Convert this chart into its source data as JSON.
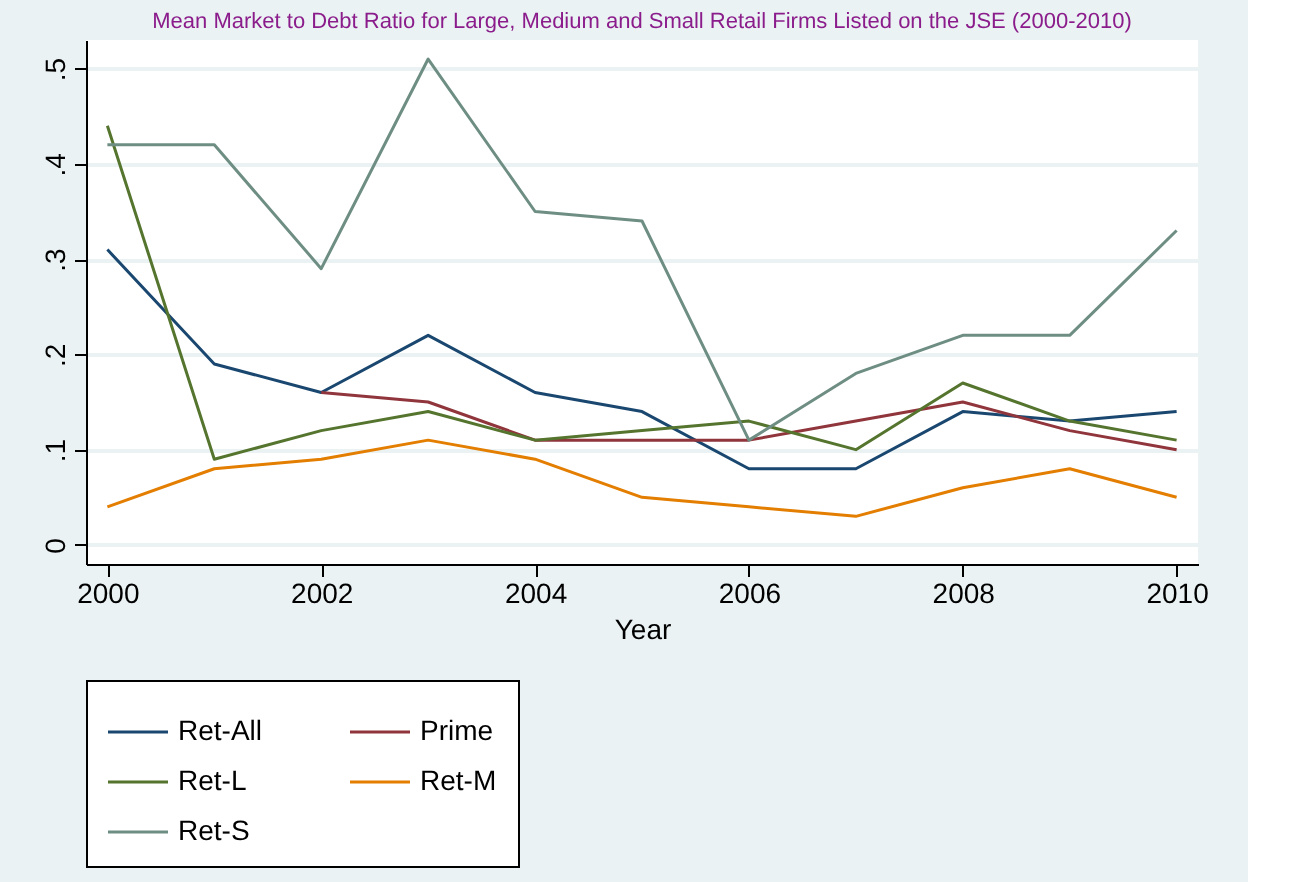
{
  "chart_data": {
    "type": "line",
    "title": "Mean Market to Debt Ratio for Large, Medium and Small Retail Firms Listed on the JSE (2000-2010)",
    "xlabel": "Year",
    "x": [
      2000,
      2001,
      2002,
      2003,
      2004,
      2005,
      2006,
      2007,
      2008,
      2009,
      2010
    ],
    "series": [
      {
        "name": "Ret-All",
        "color": "#1a476f",
        "values": [
          0.31,
          0.19,
          0.16,
          0.22,
          0.16,
          0.14,
          0.08,
          0.08,
          0.14,
          0.13,
          0.14
        ]
      },
      {
        "name": "Prime",
        "color": "#90353b",
        "values": [
          null,
          null,
          0.16,
          0.15,
          0.11,
          0.11,
          0.11,
          0.13,
          0.15,
          0.12,
          0.1
        ]
      },
      {
        "name": "Ret-L",
        "color": "#55752f",
        "values": [
          0.44,
          0.09,
          0.12,
          0.14,
          0.11,
          0.12,
          0.13,
          0.1,
          0.17,
          0.13,
          0.11
        ]
      },
      {
        "name": "Ret-M",
        "color": "#e37e00",
        "values": [
          0.04,
          0.08,
          0.09,
          0.11,
          0.09,
          0.05,
          0.04,
          0.03,
          0.06,
          0.08,
          0.05
        ]
      },
      {
        "name": "Ret-S",
        "color": "#6e8e84",
        "values": [
          0.42,
          0.42,
          0.29,
          0.51,
          0.35,
          0.34,
          0.11,
          0.18,
          0.22,
          0.22,
          0.33
        ]
      }
    ],
    "xlim": [
      1999.8,
      2010.2
    ],
    "xticks": [
      2000,
      2002,
      2004,
      2006,
      2008,
      2010
    ],
    "ylim": [
      -0.02,
      0.53
    ],
    "yticks": [
      {
        "value": 0,
        "label": "0"
      },
      {
        "value": 0.1,
        "label": ".1"
      },
      {
        "value": 0.2,
        "label": ".2"
      },
      {
        "value": 0.3,
        "label": ".3"
      },
      {
        "value": 0.4,
        "label": ".4"
      },
      {
        "value": 0.5,
        "label": ".5"
      }
    ],
    "grid": "y",
    "legend": "bottom",
    "marker": "none",
    "line_style": "solid"
  }
}
